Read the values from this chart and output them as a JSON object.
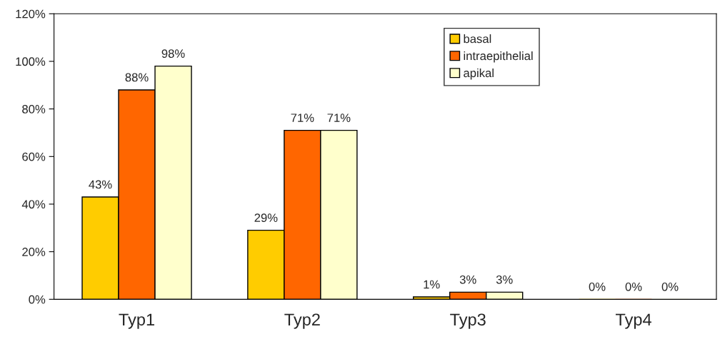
{
  "chart_data": {
    "type": "bar",
    "categories": [
      "Typ1",
      "Typ2",
      "Typ3",
      "Typ4"
    ],
    "series": [
      {
        "name": "basal",
        "color": "#ffcc00",
        "values": [
          43,
          29,
          1,
          0
        ],
        "value_labels": [
          "43%",
          "29%",
          "1%",
          "0%"
        ]
      },
      {
        "name": "intraepithelial",
        "color": "#ff6600",
        "values": [
          88,
          71,
          3,
          0
        ],
        "value_labels": [
          "88%",
          "71%",
          "3%",
          "0%"
        ]
      },
      {
        "name": "apikal",
        "color": "#ffffcc",
        "values": [
          98,
          71,
          3,
          0
        ],
        "value_labels": [
          "98%",
          "71%",
          "3%",
          "0%"
        ]
      }
    ],
    "ylim": [
      0,
      120
    ],
    "yticks": [
      {
        "value": 0,
        "label": "0%"
      },
      {
        "value": 20,
        "label": "20%"
      },
      {
        "value": 40,
        "label": "40%"
      },
      {
        "value": 60,
        "label": "60%"
      },
      {
        "value": 80,
        "label": "80%"
      },
      {
        "value": 100,
        "label": "100%"
      },
      {
        "value": 120,
        "label": "120%"
      }
    ],
    "grid": false,
    "legend": "top right"
  }
}
